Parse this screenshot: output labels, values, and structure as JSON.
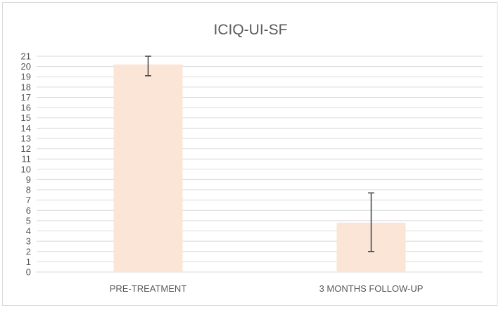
{
  "chart_data": {
    "type": "bar",
    "title": "ICIQ-UI-SF",
    "categories": [
      "PRE-TREATMENT",
      "3 MONTHS FOLLOW-UP"
    ],
    "values": [
      20.2,
      4.8
    ],
    "error_bars": [
      {
        "low": 19.1,
        "high": 21.0
      },
      {
        "low": 2.0,
        "high": 7.7
      }
    ],
    "ylim": [
      0,
      21
    ],
    "yticks": [
      0,
      1,
      2,
      3,
      4,
      5,
      6,
      7,
      8,
      9,
      10,
      11,
      12,
      13,
      14,
      15,
      16,
      17,
      18,
      19,
      20,
      21
    ],
    "grid": true,
    "legend": "none",
    "colors": {
      "bar": "#fae5d6",
      "grid": "#d9d9d9",
      "text": "#595959",
      "error": "#404040"
    }
  }
}
